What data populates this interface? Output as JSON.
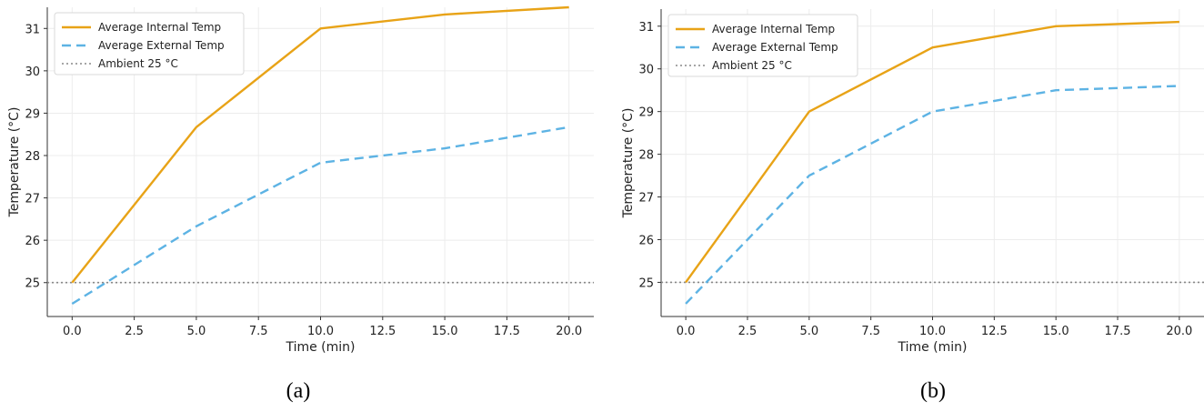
{
  "colors": {
    "internal": "#E8A317",
    "external": "#5DB3E4",
    "ambient": "#888888"
  },
  "chart_data": [
    {
      "type": "line",
      "caption": "(a)",
      "xlabel": "Time (min)",
      "ylabel": "Temperature (°C)",
      "xlim": [
        -1.0,
        21.0
      ],
      "ylim": [
        24.2,
        31.5
      ],
      "xticks": [
        0.0,
        2.5,
        5.0,
        7.5,
        10.0,
        12.5,
        15.0,
        17.5,
        20.0
      ],
      "xtick_labels": [
        "0.0",
        "2.5",
        "5.0",
        "7.5",
        "10.0",
        "12.5",
        "15.0",
        "17.5",
        "20.0"
      ],
      "yticks": [
        25,
        26,
        27,
        28,
        29,
        30,
        31
      ],
      "ytick_labels": [
        "25",
        "26",
        "27",
        "28",
        "29",
        "30",
        "31"
      ],
      "grid": true,
      "legend_position": "top-left",
      "series": [
        {
          "name": "Average Internal Temp",
          "style": "solid",
          "color": "#E8A317",
          "x": [
            0,
            5,
            10,
            15,
            20
          ],
          "y": [
            25.0,
            28.67,
            31.0,
            31.33,
            31.5
          ]
        },
        {
          "name": "Average External Temp",
          "style": "dashed",
          "color": "#5DB3E4",
          "x": [
            0,
            5,
            10,
            15,
            20
          ],
          "y": [
            24.5,
            26.33,
            27.83,
            28.17,
            28.67
          ]
        },
        {
          "name": "Ambient 25 °C",
          "style": "dotted",
          "color": "#888888",
          "x": [
            -1.0,
            21.0
          ],
          "y": [
            25,
            25
          ]
        }
      ]
    },
    {
      "type": "line",
      "caption": "(b)",
      "xlabel": "Time (min)",
      "ylabel": "Temperature (°C)",
      "xlim": [
        -1.0,
        21.0
      ],
      "ylim": [
        24.2,
        31.4
      ],
      "xticks": [
        0.0,
        2.5,
        5.0,
        7.5,
        10.0,
        12.5,
        15.0,
        17.5,
        20.0
      ],
      "xtick_labels": [
        "0.0",
        "2.5",
        "5.0",
        "7.5",
        "10.0",
        "12.5",
        "15.0",
        "17.5",
        "20.0"
      ],
      "yticks": [
        25,
        26,
        27,
        28,
        29,
        30,
        31
      ],
      "ytick_labels": [
        "25",
        "26",
        "27",
        "28",
        "29",
        "30",
        "31"
      ],
      "grid": true,
      "legend_position": "top-left",
      "series": [
        {
          "name": "Average Internal Temp",
          "style": "solid",
          "color": "#E8A317",
          "x": [
            0,
            5,
            10,
            15,
            20
          ],
          "y": [
            25.0,
            29.0,
            30.5,
            31.0,
            31.1
          ]
        },
        {
          "name": "Average External Temp",
          "style": "dashed",
          "color": "#5DB3E4",
          "x": [
            0,
            5,
            10,
            15,
            20
          ],
          "y": [
            24.5,
            27.5,
            29.0,
            29.5,
            29.6
          ]
        },
        {
          "name": "Ambient 25 °C",
          "style": "dotted",
          "color": "#888888",
          "x": [
            -1.0,
            21.0
          ],
          "y": [
            25,
            25
          ]
        }
      ]
    }
  ]
}
